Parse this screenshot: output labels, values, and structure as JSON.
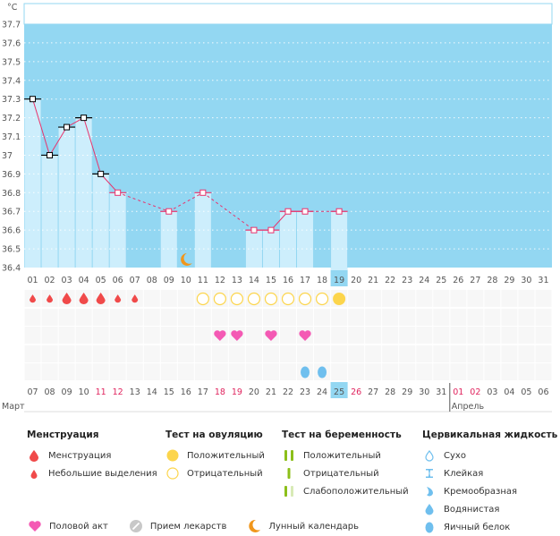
{
  "chart_data": {
    "type": "bar",
    "title": "",
    "ylabel": "°C",
    "xlabel": "",
    "ylim": [
      36.4,
      37.7
    ],
    "yticks": [
      "36.4",
      "36.5",
      "36.6",
      "36.7",
      "36.8",
      "36.9",
      "37",
      "37.1",
      "37.2",
      "37.3",
      "37.4",
      "37.5",
      "37.6",
      "37.7"
    ],
    "grid": true,
    "cycle_days": [
      "01",
      "02",
      "03",
      "04",
      "05",
      "06",
      "07",
      "08",
      "09",
      "10",
      "11",
      "12",
      "13",
      "14",
      "15",
      "16",
      "17",
      "18",
      "19",
      "20",
      "21",
      "22",
      "23",
      "24",
      "25",
      "26",
      "27",
      "28",
      "29",
      "30",
      "31"
    ],
    "highlight_day": "19",
    "temperatures": [
      {
        "day": 1,
        "value": 37.3,
        "type": "black"
      },
      {
        "day": 2,
        "value": 37.0,
        "type": "black"
      },
      {
        "day": 3,
        "value": 37.15,
        "type": "black"
      },
      {
        "day": 4,
        "value": 37.2,
        "type": "black"
      },
      {
        "day": 5,
        "value": 36.9,
        "type": "black"
      },
      {
        "day": 6,
        "value": 36.8,
        "type": "pink"
      },
      {
        "day": 9,
        "value": 36.7,
        "type": "pink"
      },
      {
        "day": 11,
        "value": 36.8,
        "type": "pink"
      },
      {
        "day": 14,
        "value": 36.6,
        "type": "pink"
      },
      {
        "day": 15,
        "value": 36.6,
        "type": "pink"
      },
      {
        "day": 16,
        "value": 36.7,
        "type": "pink"
      },
      {
        "day": 17,
        "value": 36.7,
        "type": "pink"
      },
      {
        "day": 19,
        "value": 36.7,
        "type": "pink"
      }
    ],
    "moon_day": 10,
    "events": {
      "menstruation_heavy": [
        3,
        4,
        5
      ],
      "menstruation_light": [
        1,
        2,
        6,
        7
      ],
      "ovulation_negative": [
        11,
        12,
        13,
        14,
        15,
        16,
        17,
        18
      ],
      "ovulation_positive": [
        19
      ],
      "intercourse": [
        12,
        13,
        15,
        17
      ],
      "egg_white": [
        17,
        18
      ]
    },
    "dates": [
      "07",
      "08",
      "09",
      "10",
      "11",
      "12",
      "13",
      "14",
      "15",
      "16",
      "17",
      "18",
      "19",
      "20",
      "21",
      "22",
      "23",
      "24",
      "25",
      "26",
      "27",
      "28",
      "29",
      "30",
      "31",
      "01",
      "02",
      "03",
      "04",
      "05",
      "06"
    ],
    "weekend_dates_idx": [
      4,
      5,
      11,
      12,
      19,
      25,
      26
    ],
    "today_date_idx": 18,
    "month_labels": [
      {
        "label": "Март",
        "start_idx": 0
      },
      {
        "label": "Апрель",
        "start_idx": 25
      }
    ]
  },
  "legend": {
    "menstruation": {
      "title": "Менструация",
      "items": [
        "Менструация",
        "Небольшие выделения"
      ]
    },
    "ovulation": {
      "title": "Тест на овуляцию",
      "items": [
        "Положительный",
        "Отрицательный"
      ]
    },
    "pregnancy": {
      "title": "Тест на беременность",
      "items": [
        "Положительный",
        "Отрицательный",
        "Слабоположительный"
      ]
    },
    "cervical": {
      "title": "Цервикальная жидкость",
      "items": [
        "Сухо",
        "Клейкая",
        "Кремообразная",
        "Водянистая",
        "Яичный белок"
      ]
    },
    "bottom": [
      "Половой акт",
      "Прием лекарств",
      "Лунный календарь"
    ]
  },
  "colors": {
    "plot_bg": "#93d7f2",
    "bar": "#cdeefc",
    "line": "#e8336c",
    "weekend": "#e0245e",
    "today": "#93d7f2",
    "drop": "#f04a4a",
    "ovu": "#fcd54c",
    "heart": "#f45ab4",
    "fluid": "#6fbfee",
    "moon": "#f0961c",
    "test": "#8cbf1a"
  }
}
